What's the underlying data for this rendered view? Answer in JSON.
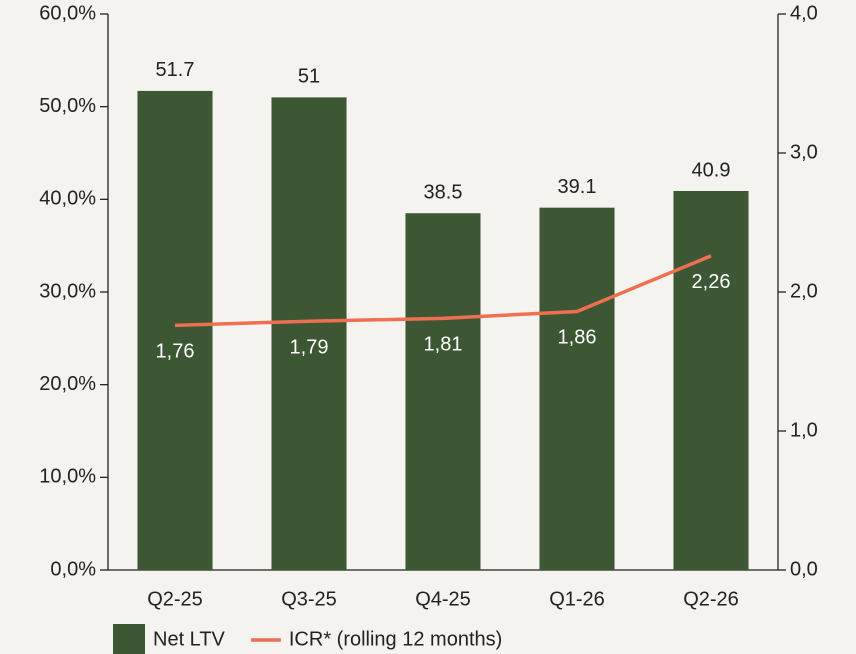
{
  "chart_data": {
    "type": "bar",
    "categories": [
      "Q2-25",
      "Q3-25",
      "Q4-25",
      "Q1-26",
      "Q2-26"
    ],
    "series": [
      {
        "name": "Net LTV",
        "type": "bar",
        "color": "#3d5633",
        "values": [
          51.7,
          51.0,
          38.5,
          39.1,
          40.9
        ]
      },
      {
        "name": "ICR* (rolling 12 months)",
        "type": "line",
        "axis": "y2",
        "color": "#ee7050",
        "values": [
          1.76,
          1.79,
          1.81,
          1.86,
          2.26
        ],
        "value_labels": [
          "1,76",
          "1,79",
          "1,81",
          "1,86",
          "2,26"
        ]
      }
    ],
    "ylim": [
      0,
      60
    ],
    "yticks": [
      {
        "value": 0,
        "label": "0,0%"
      },
      {
        "value": 10,
        "label": "10,0%"
      },
      {
        "value": 20,
        "label": "20,0%"
      },
      {
        "value": 30,
        "label": "30,0%"
      },
      {
        "value": 40,
        "label": "40,0%"
      },
      {
        "value": 50,
        "label": "50,0%"
      },
      {
        "value": 60,
        "label": "60,0%"
      }
    ],
    "y2lim": [
      0,
      4
    ],
    "y2ticks": [
      {
        "value": 0,
        "label": "0,0"
      },
      {
        "value": 1,
        "label": "1,0"
      },
      {
        "value": 2,
        "label": "2,0"
      },
      {
        "value": 3,
        "label": "3,0"
      },
      {
        "value": 4,
        "label": "4,0"
      }
    ],
    "grid": false,
    "legend": "bottom"
  }
}
